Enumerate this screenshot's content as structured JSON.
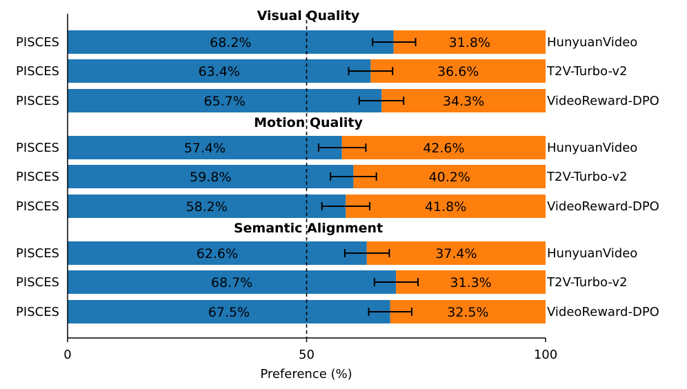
{
  "chart_data": {
    "type": "bar",
    "orientation": "horizontal",
    "stacked": true,
    "xlabel": "Preference (%)",
    "xlim": [
      0,
      100
    ],
    "xticks": [
      0,
      50,
      100
    ],
    "reference_line": 50,
    "colors": {
      "left": "#1f77b4",
      "right": "#ff7f0e"
    },
    "groups": [
      {
        "title": "Visual Quality",
        "rows": [
          {
            "label": "PISCES",
            "opponent": "HunyuanVideo",
            "left": 68.2,
            "right": 31.8,
            "left_text": "68.2%",
            "right_text": "31.8%",
            "err": [
              63.8,
              72.8
            ]
          },
          {
            "label": "PISCES",
            "opponent": "T2V-Turbo-v2",
            "left": 63.4,
            "right": 36.6,
            "left_text": "63.4%",
            "right_text": "36.6%",
            "err": [
              58.8,
              68.0
            ]
          },
          {
            "label": "PISCES",
            "opponent": "VideoReward-DPO",
            "left": 65.7,
            "right": 34.3,
            "left_text": "65.7%",
            "right_text": "34.3%",
            "err": [
              61.0,
              70.3
            ]
          }
        ]
      },
      {
        "title": "Motion Quality",
        "rows": [
          {
            "label": "PISCES",
            "opponent": "HunyuanVideo",
            "left": 57.4,
            "right": 42.6,
            "left_text": "57.4%",
            "right_text": "42.6%",
            "err": [
              52.5,
              62.4
            ]
          },
          {
            "label": "PISCES",
            "opponent": "T2V-Turbo-v2",
            "left": 59.8,
            "right": 40.2,
            "left_text": "59.8%",
            "right_text": "40.2%",
            "err": [
              55.0,
              64.6
            ]
          },
          {
            "label": "PISCES",
            "opponent": "VideoReward-DPO",
            "left": 58.2,
            "right": 41.8,
            "left_text": "58.2%",
            "right_text": "41.8%",
            "err": [
              53.2,
              63.2
            ]
          }
        ]
      },
      {
        "title": "Semantic Alignment",
        "rows": [
          {
            "label": "PISCES",
            "opponent": "HunyuanVideo",
            "left": 62.6,
            "right": 37.4,
            "left_text": "62.6%",
            "right_text": "37.4%",
            "err": [
              58.0,
              67.3
            ]
          },
          {
            "label": "PISCES",
            "opponent": "T2V-Turbo-v2",
            "left": 68.7,
            "right": 31.3,
            "left_text": "68.7%",
            "right_text": "31.3%",
            "err": [
              64.2,
              73.3
            ]
          },
          {
            "label": "PISCES",
            "opponent": "VideoReward-DPO",
            "left": 67.5,
            "right": 32.5,
            "left_text": "67.5%",
            "right_text": "32.5%",
            "err": [
              63.0,
              72.0
            ]
          }
        ]
      }
    ]
  }
}
